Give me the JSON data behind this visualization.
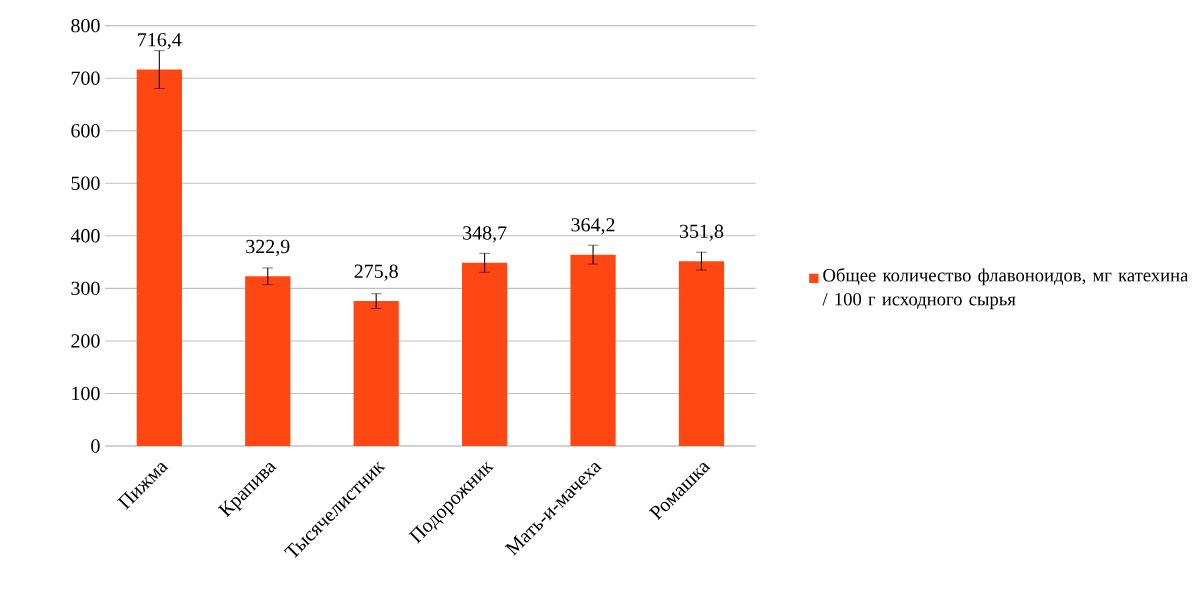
{
  "chart_data": {
    "type": "bar",
    "categories": [
      "Пижма",
      "Крапива",
      "Тысячелистник",
      "Подорожник",
      "Мать-и-мачеха",
      "Ромашка"
    ],
    "series": [
      {
        "name": "Общее количество флавоноидов, мг катехина / 100 г исходного сырья",
        "color": "#ff4713",
        "values": [
          716.4,
          322.9,
          275.8,
          348.7,
          364.2,
          351.8
        ],
        "value_labels": [
          "716,4",
          "322,9",
          "275,8",
          "348,7",
          "364,2",
          "351,8"
        ],
        "errors": [
          36,
          16,
          14,
          18,
          18,
          17
        ]
      }
    ],
    "ylim": [
      0,
      800
    ],
    "yticks": [
      0,
      100,
      200,
      300,
      400,
      500,
      600,
      700,
      800
    ],
    "grid": "y",
    "legend": "right"
  }
}
